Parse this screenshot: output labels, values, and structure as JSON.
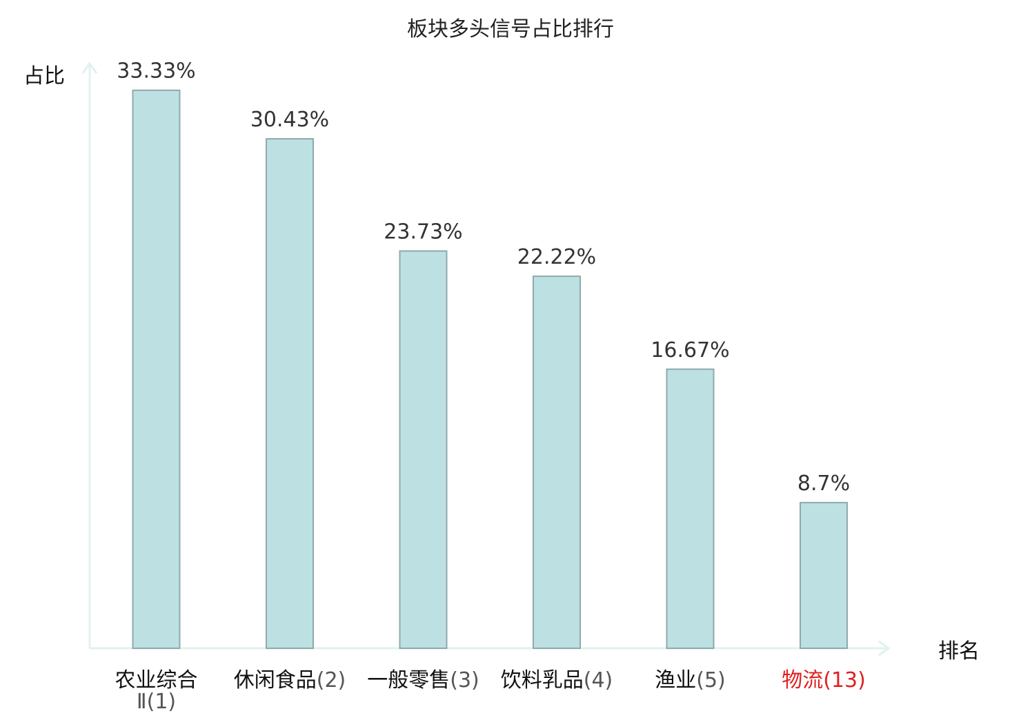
{
  "chart_data": {
    "type": "bar",
    "title": "板块多头信号占比排行",
    "ylabel": "占比",
    "xlabel": "排名",
    "ylim": [
      0,
      35
    ],
    "grid": false,
    "legend": "none",
    "categories": [
      {
        "name": "农业综合Ⅱ",
        "rank": "(1)",
        "highlight": false
      },
      {
        "name": "休闲食品",
        "rank": "(2)",
        "highlight": false
      },
      {
        "name": "一般零售",
        "rank": "(3)",
        "highlight": false
      },
      {
        "name": "饮料乳品",
        "rank": "(4)",
        "highlight": false
      },
      {
        "name": "渔业",
        "rank": "(5)",
        "highlight": false
      },
      {
        "name": "物流",
        "rank": "(13)",
        "highlight": true
      }
    ],
    "values": [
      33.33,
      30.43,
      23.73,
      22.22,
      16.67,
      8.7
    ],
    "value_labels": [
      "33.33%",
      "30.43%",
      "23.73%",
      "22.22%",
      "16.67%",
      "8.7%"
    ],
    "colors": {
      "bar_fill": "#bde0e2",
      "bar_stroke": "#8fa9aa",
      "axis": "#e0f2f0",
      "label": "#333333",
      "category_text": "#111111",
      "rank_text": "#555555",
      "highlight": "#e02020"
    }
  }
}
